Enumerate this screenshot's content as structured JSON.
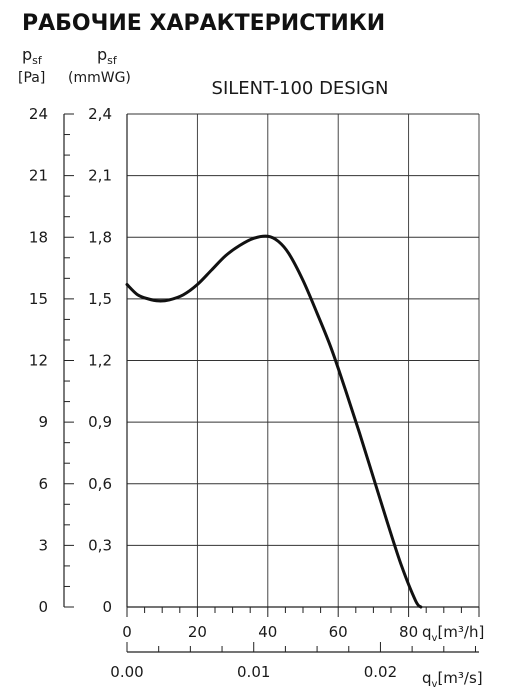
{
  "page_title": "РАБОЧИЕ ХАРАКТЕРИСТИКИ",
  "chart_data": {
    "type": "line",
    "title": "SILENT-100 DESIGN",
    "y_left_label": "p",
    "y_left_label_sub": "sf",
    "y_left_unit": "[Pa]",
    "y_right_label": "p",
    "y_right_label_sub": "sf",
    "y_right_unit": "(mmWG)",
    "ylim_pa": [
      0,
      24
    ],
    "ylim_mmwg": [
      0,
      2.4
    ],
    "y_ticks_pa": [
      "0",
      "3",
      "6",
      "9",
      "12",
      "15",
      "18",
      "21",
      "24"
    ],
    "y_ticks_mmwg": [
      "0",
      "0,3",
      "0,6",
      "0,9",
      "1,2",
      "1,5",
      "1,8",
      "2,1",
      "2,4"
    ],
    "x_label_m3h": "q",
    "x_label_m3h_sub": "v",
    "x_unit_m3h": "[m³/h]",
    "x_ticks_m3h": [
      "0",
      "20",
      "40",
      "60",
      "80"
    ],
    "xlim_m3h": [
      0,
      100
    ],
    "x_label_m3s": "q",
    "x_label_m3s_sub": "v",
    "x_unit_m3s": "[m³/s]",
    "x_ticks_m3s": [
      "0.00",
      "0.01",
      "0.02"
    ],
    "x_ticks_m3s_values": [
      0.0,
      0.01,
      0.02
    ],
    "grid": true,
    "series": [
      {
        "x": [
          0,
          3,
          6,
          9,
          12,
          16,
          20,
          24,
          28,
          32,
          36,
          40,
          43,
          46,
          50,
          54,
          58,
          62,
          66,
          70,
          74,
          78,
          82,
          83.5
        ],
        "y": [
          15.7,
          15.2,
          15.0,
          14.9,
          14.95,
          15.2,
          15.7,
          16.4,
          17.1,
          17.6,
          17.95,
          18.05,
          17.8,
          17.2,
          15.9,
          14.3,
          12.6,
          10.6,
          8.5,
          6.3,
          4.1,
          2.0,
          0.3,
          0
        ]
      }
    ]
  }
}
